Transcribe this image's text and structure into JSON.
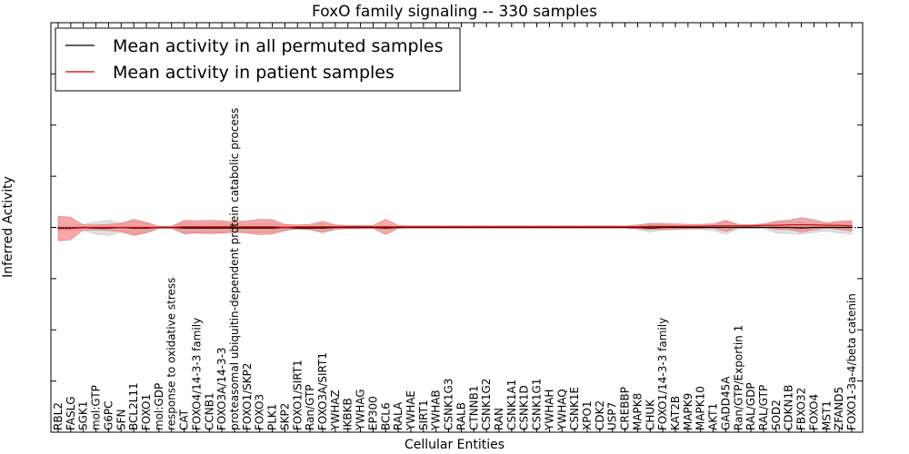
{
  "chart_data": {
    "type": "line",
    "title": "FoxO family signaling -- 330 samples",
    "xlabel": "Cellular Entities",
    "ylabel": "Inferred Activity",
    "ylim": [
      -4,
      4
    ],
    "yticks": [
      -4,
      -3,
      -2,
      -1,
      0,
      1,
      2,
      3,
      4
    ],
    "legend_position": "top-left",
    "categories": [
      "RBL2",
      "FASLG",
      "SGK1",
      "mol:GTP",
      "G6PC",
      "SFN",
      "BCL2L11",
      "FOXO1",
      "mol:GDP",
      "response to oxidative stress",
      "CAT",
      "FOXO4/14-3-3 family",
      "CCNB1",
      "FOXO3A/14-3-3",
      "proteasomal ubiquitin-dependent protein catabolic process",
      "FOXO1/SKP2",
      "FOXO3",
      "PLK1",
      "SKP2",
      "FOXO1/SIRT1",
      "Ran/GTP",
      "FOXO3A/SIRT1",
      "YWHAZ",
      "IKBKB",
      "YWHAG",
      "EP300",
      "BCL6",
      "RALA",
      "YWHAE",
      "SIRT1",
      "YWHAB",
      "CSNK1G3",
      "RALB",
      "CTNNB1",
      "CSNK1G2",
      "RAN",
      "CSNK1A1",
      "CSNK1D",
      "CSNK1G1",
      "YWHAH",
      "YWHAQ",
      "CSNK1E",
      "XPO1",
      "CDK2",
      "USP7",
      "CREBBP",
      "MAPK8",
      "CHUK",
      "FOXO1/14-3-3 family",
      "KAT2B",
      "MAPK9",
      "MAPK10",
      "AKT1",
      "GADD45A",
      "Ran/GTP/Exportin 1",
      "RAL/GDP",
      "RAL/GTP",
      "SOD2",
      "CDKN1B",
      "FBXO32",
      "FOXO4",
      "MST1",
      "ZFAND5",
      "FOXO1-3a-4/beta catenin"
    ],
    "series": [
      {
        "name": "Mean activity in all permuted samples",
        "color": "#000000",
        "band_color": "#cccccc",
        "values": [
          -0.01,
          -0.01,
          0,
          -0.01,
          -0.01,
          0,
          -0.01,
          -0.01,
          0,
          0,
          -0.01,
          -0.01,
          -0.01,
          -0.01,
          -0.01,
          -0.01,
          -0.01,
          -0.01,
          0,
          -0.01,
          -0.01,
          -0.01,
          0,
          0,
          0,
          0,
          -0.01,
          0,
          0,
          0,
          0,
          0,
          0,
          0,
          0,
          0,
          0,
          0,
          0,
          0,
          0,
          0,
          0,
          0,
          0,
          0,
          0,
          -0.01,
          0,
          0,
          0,
          0,
          0,
          0,
          0,
          0,
          0,
          0,
          0,
          -0.01,
          0,
          0,
          0,
          0
        ],
        "band": [
          0.05,
          0.05,
          0.06,
          0.12,
          0.15,
          0.09,
          0.14,
          0.1,
          0.02,
          0.01,
          0.12,
          0.09,
          0.1,
          0.1,
          0.09,
          0.07,
          0.09,
          0.08,
          0.05,
          0.02,
          0.04,
          0.09,
          0.04,
          0.03,
          0.03,
          0.01,
          0.05,
          0.01,
          0.01,
          0.01,
          0.01,
          0.01,
          0.01,
          0.01,
          0.01,
          0.01,
          0.01,
          0.01,
          0.01,
          0.01,
          0.01,
          0.01,
          0.01,
          0.01,
          0.01,
          0.01,
          0.03,
          0.08,
          0.05,
          0.04,
          0.04,
          0.04,
          0.06,
          0.13,
          0.03,
          0.02,
          0.02,
          0.11,
          0.12,
          0.12,
          0.1,
          0.07,
          0.11,
          0.13
        ]
      },
      {
        "name": "Mean activity in patient samples",
        "color": "#cc0000",
        "band_color": "#f28b8b",
        "values": [
          -0.02,
          -0.02,
          0,
          0,
          0,
          0,
          0,
          0,
          0,
          0,
          0.01,
          0.01,
          0.01,
          0.01,
          0.01,
          0.01,
          0.01,
          0.01,
          0,
          0.01,
          0.01,
          0.01,
          0.01,
          0.01,
          0.01,
          0.01,
          0.01,
          0.01,
          0.01,
          0.01,
          0.01,
          0.01,
          0.01,
          0.01,
          0.01,
          0.01,
          0.01,
          0.01,
          0.01,
          0.01,
          0.01,
          0.01,
          0.01,
          0.01,
          0.01,
          0.01,
          0.01,
          0.02,
          0.02,
          0.02,
          0.02,
          0.02,
          0.03,
          0.03,
          0.03,
          0.03,
          0.04,
          0.04,
          0.05,
          0.05,
          0.05,
          0.04,
          0.04,
          0.03
        ],
        "band": [
          0.24,
          0.22,
          0.05,
          0.05,
          0.06,
          0.08,
          0.16,
          0.1,
          0.02,
          0.02,
          0.13,
          0.12,
          0.13,
          0.12,
          0.1,
          0.12,
          0.15,
          0.14,
          0.06,
          0.04,
          0.05,
          0.11,
          0.04,
          0.03,
          0.03,
          0.03,
          0.15,
          0.03,
          0.02,
          0.02,
          0.02,
          0.02,
          0.02,
          0.02,
          0.02,
          0.02,
          0.02,
          0.02,
          0.02,
          0.02,
          0.02,
          0.02,
          0.02,
          0.02,
          0.02,
          0.02,
          0.04,
          0.06,
          0.06,
          0.05,
          0.04,
          0.04,
          0.04,
          0.11,
          0.03,
          0.02,
          0.03,
          0.08,
          0.09,
          0.14,
          0.1,
          0.05,
          0.08,
          0.1
        ]
      }
    ]
  }
}
